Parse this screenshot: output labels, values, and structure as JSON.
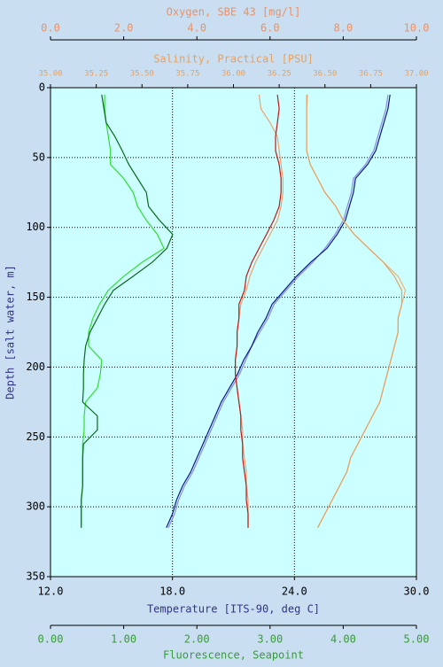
{
  "chart_data": {
    "type": "profile",
    "y_label": "Depth [salt water, m]",
    "ylim": [
      0,
      350
    ],
    "y_inverted": true,
    "yticks": [
      0,
      50,
      100,
      150,
      200,
      250,
      300,
      350
    ],
    "grid": true,
    "depth": [
      5,
      15,
      25,
      35,
      45,
      55,
      65,
      75,
      85,
      95,
      105,
      115,
      125,
      135,
      145,
      155,
      165,
      175,
      185,
      195,
      205,
      215,
      225,
      235,
      245,
      255,
      265,
      275,
      285,
      295,
      305,
      315
    ],
    "x_axes": [
      {
        "label": "Oxygen, SBE 43 [mg/l]",
        "side": "top",
        "color": "#e8926a",
        "xlim": [
          0,
          10
        ],
        "xticks": [
          {
            "value": 0,
            "label": "0.0"
          },
          {
            "value": 2,
            "label": "2.0"
          },
          {
            "value": 4,
            "label": "4.0"
          },
          {
            "value": 6,
            "label": "6.0"
          },
          {
            "value": 8,
            "label": "8.0"
          },
          {
            "value": 10,
            "label": "10.0"
          }
        ]
      },
      {
        "label": "Salinity, Practical [PSU]",
        "side": "top",
        "color": "#e8a060",
        "xlim": [
          35,
          37
        ],
        "xticks": [
          {
            "value": 35,
            "label": "35.00"
          },
          {
            "value": 35.25,
            "label": "35.25"
          },
          {
            "value": 35.5,
            "label": "35.50"
          },
          {
            "value": 35.75,
            "label": "35.75"
          },
          {
            "value": 36,
            "label": "36.00"
          },
          {
            "value": 36.25,
            "label": "36.25"
          },
          {
            "value": 36.5,
            "label": "36.50"
          },
          {
            "value": 36.75,
            "label": "36.75"
          },
          {
            "value": 37,
            "label": "37.00"
          }
        ]
      },
      {
        "label": "Temperature [ITS-90, deg C]",
        "side": "bottom",
        "color": "#33338a",
        "grid": true,
        "xlim": [
          12,
          30
        ],
        "xticks": [
          {
            "value": 12,
            "label": "12.0"
          },
          {
            "value": 18,
            "label": "18.0"
          },
          {
            "value": 24,
            "label": "24.0"
          },
          {
            "value": 30,
            "label": "30.0"
          }
        ]
      },
      {
        "label": "Fluorescence, Seapoint",
        "side": "bottom",
        "color": "#3a9a3a",
        "xlim": [
          0,
          5
        ],
        "xticks": [
          {
            "value": 0,
            "label": "0.00"
          },
          {
            "value": 1,
            "label": "1.00"
          },
          {
            "value": 2,
            "label": "2.00"
          },
          {
            "value": 3,
            "label": "3.00"
          },
          {
            "value": 4,
            "label": "4.00"
          },
          {
            "value": 5,
            "label": "5.00"
          }
        ]
      }
    ],
    "series": [
      {
        "axis": 2,
        "color": "#8a8ae0",
        "values": [
          28.6,
          28.5,
          28.3,
          28.1,
          27.9,
          27.5,
          26.9,
          26.8,
          26.6,
          26.4,
          26.0,
          25.5,
          24.9,
          24.2,
          23.6,
          23.0,
          22.7,
          22.3,
          21.9,
          21.6,
          21.3,
          20.9,
          20.5,
          20.2,
          19.9,
          19.6,
          19.3,
          19.0,
          18.6,
          18.3,
          18.1,
          17.8
        ]
      },
      {
        "axis": 2,
        "color": "#0a1a80",
        "values": [
          28.7,
          28.6,
          28.4,
          28.2,
          28.0,
          27.6,
          27.0,
          26.9,
          26.7,
          26.5,
          26.1,
          25.6,
          24.8,
          24.1,
          23.5,
          22.9,
          22.6,
          22.2,
          21.9,
          21.5,
          21.2,
          20.8,
          20.4,
          20.1,
          19.8,
          19.5,
          19.2,
          18.9,
          18.5,
          18.2,
          18.0,
          17.7
        ]
      },
      {
        "axis": 1,
        "color": "#f0a070",
        "values": [
          36.14,
          36.15,
          36.2,
          36.24,
          36.25,
          36.26,
          36.27,
          36.27,
          36.26,
          36.24,
          36.2,
          36.16,
          36.12,
          36.09,
          36.07,
          36.04,
          36.03,
          36.02,
          36.02,
          36.01,
          36.01,
          36.02,
          36.03,
          36.04,
          36.05,
          36.05,
          36.06,
          36.07,
          36.07,
          36.08,
          36.08,
          36.08
        ]
      },
      {
        "axis": 1,
        "color": "#c01818",
        "values": [
          36.24,
          36.25,
          36.24,
          36.23,
          36.23,
          36.25,
          36.26,
          36.26,
          36.25,
          36.22,
          36.18,
          36.14,
          36.1,
          36.07,
          36.06,
          36.03,
          36.03,
          36.02,
          36.02,
          36.01,
          36.01,
          36.02,
          36.03,
          36.04,
          36.04,
          36.05,
          36.05,
          36.06,
          36.07,
          36.07,
          36.08,
          36.08
        ]
      },
      {
        "axis": 0,
        "color": "#f6b070",
        "values": [
          7.0,
          7.0,
          7.0,
          7.0,
          7.0,
          7.1,
          7.3,
          7.5,
          7.8,
          8.0,
          8.3,
          8.7,
          9.1,
          9.5,
          9.7,
          9.6,
          9.5,
          9.5,
          9.4,
          9.3,
          9.2,
          9.1,
          9.0,
          8.8,
          8.6,
          8.4,
          8.2,
          8.1,
          7.9,
          7.7,
          7.5,
          7.3
        ]
      },
      {
        "axis": 0,
        "color": "#e8a060",
        "values": [
          7.02,
          7.0,
          7.0,
          7.0,
          7.0,
          7.1,
          7.3,
          7.5,
          7.8,
          8.0,
          8.3,
          8.7,
          9.1,
          9.4,
          9.6,
          9.6,
          9.5,
          9.5,
          9.4,
          9.3,
          9.2,
          9.1,
          9.0,
          8.8,
          8.6,
          8.4,
          8.2,
          8.1,
          7.9,
          7.7,
          7.5,
          7.3
        ]
      },
      {
        "axis": 3,
        "color": "#33dd33",
        "values": [
          0.74,
          0.74,
          0.76,
          0.79,
          0.82,
          0.82,
          1.0,
          1.13,
          1.19,
          1.31,
          1.46,
          1.55,
          1.25,
          1.0,
          0.79,
          0.67,
          0.58,
          0.52,
          0.52,
          0.7,
          0.68,
          0.64,
          0.48,
          0.46,
          0.46,
          0.44,
          0.44,
          0.44,
          0.44,
          0.42,
          0.42,
          0.42
        ]
      },
      {
        "axis": 3,
        "color": "#0a6a1a",
        "values": [
          0.7,
          0.73,
          0.76,
          0.88,
          0.98,
          1.07,
          1.19,
          1.31,
          1.34,
          1.49,
          1.67,
          1.59,
          1.39,
          1.13,
          0.86,
          0.74,
          0.64,
          0.54,
          0.48,
          0.46,
          0.45,
          0.45,
          0.44,
          0.64,
          0.64,
          0.45,
          0.44,
          0.44,
          0.44,
          0.42,
          0.42,
          0.42
        ]
      }
    ]
  }
}
